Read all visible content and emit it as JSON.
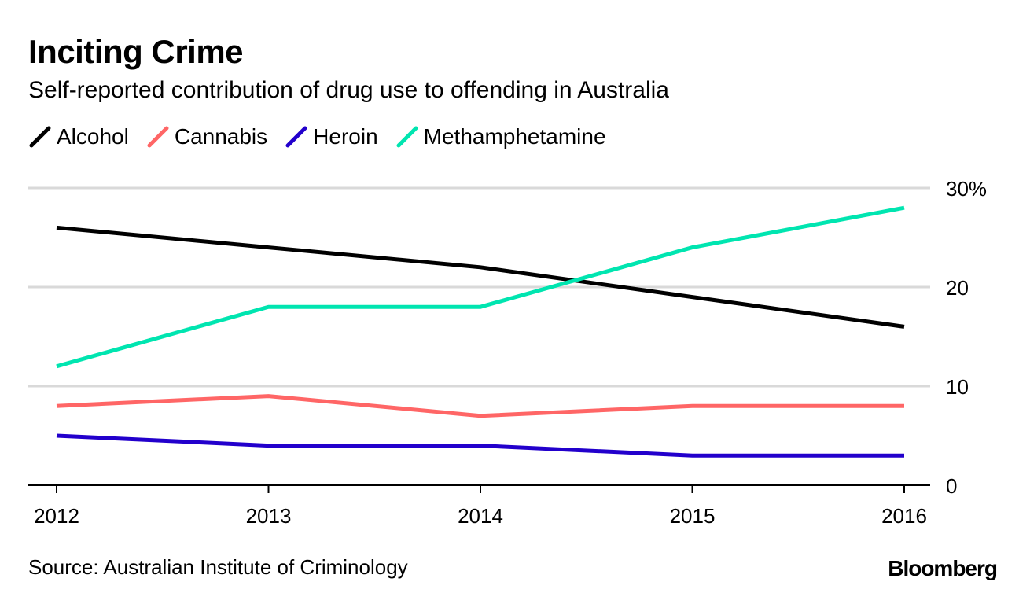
{
  "header": {
    "title": "Inciting Crime",
    "subtitle": "Self-reported contribution of drug use to offending in Australia"
  },
  "footer": {
    "source": "Source: Australian Institute of Criminology",
    "brand": "Bloomberg"
  },
  "chart_data": {
    "type": "line",
    "title": "Inciting Crime",
    "subtitle": "Self-reported contribution of drug use to offending in Australia",
    "x": [
      "2012",
      "2013",
      "2014",
      "2015",
      "2016"
    ],
    "y_ticks": [
      {
        "value": 0,
        "label": "0"
      },
      {
        "value": 10,
        "label": "10"
      },
      {
        "value": 20,
        "label": "20"
      },
      {
        "value": 30,
        "label": "30%"
      }
    ],
    "ylim": [
      0,
      30
    ],
    "y_axis_side": "right",
    "grid": true,
    "legend_placement": "top-left",
    "series": [
      {
        "name": "Alcohol",
        "color": "#000000",
        "values": [
          26,
          24,
          22,
          19,
          16
        ]
      },
      {
        "name": "Cannabis",
        "color": "#ff6666",
        "values": [
          8,
          9,
          7,
          8,
          8
        ]
      },
      {
        "name": "Heroin",
        "color": "#2200cc",
        "values": [
          5,
          4,
          4,
          3,
          3
        ]
      },
      {
        "name": "Methamphetamine",
        "color": "#00e5b0",
        "values": [
          12,
          18,
          18,
          24,
          28
        ]
      }
    ]
  }
}
